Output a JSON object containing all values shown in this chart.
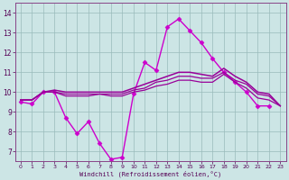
{
  "background_color": "#cce5e5",
  "grid_color": "#99bbbb",
  "line_color": "#990099",
  "line_color2": "#cc44cc",
  "xlim": [
    -0.5,
    23.5
  ],
  "ylim": [
    6.5,
    14.5
  ],
  "xticks": [
    0,
    1,
    2,
    3,
    4,
    5,
    6,
    7,
    8,
    9,
    10,
    11,
    12,
    13,
    14,
    15,
    16,
    17,
    18,
    19,
    20,
    21,
    22,
    23
  ],
  "yticks": [
    7,
    8,
    9,
    10,
    11,
    12,
    13,
    14
  ],
  "xlabel": "Windchill (Refroidissement éolien,°C)",
  "series": [
    {
      "x": [
        0,
        1,
        2,
        3,
        4,
        5,
        6,
        7,
        8,
        9,
        10,
        11,
        12,
        13,
        14,
        15,
        16,
        17,
        18,
        19,
        20,
        21,
        22
      ],
      "y": [
        9.5,
        9.4,
        10.0,
        10.0,
        8.7,
        7.9,
        8.5,
        7.4,
        6.6,
        6.7,
        9.9,
        11.5,
        11.1,
        13.3,
        13.7,
        13.1,
        12.5,
        11.7,
        11.0,
        10.5,
        10.0,
        9.3,
        9.3
      ],
      "marker": "D",
      "markersize": 2.5,
      "linewidth": 1.0,
      "color": "#cc00cc"
    },
    {
      "x": [
        0,
        1,
        2,
        3,
        4,
        5,
        6,
        7,
        8,
        9,
        10,
        11,
        12,
        13,
        14,
        15,
        16,
        17,
        18,
        19,
        20,
        21,
        22,
        23
      ],
      "y": [
        9.6,
        9.6,
        10.0,
        10.0,
        9.8,
        9.8,
        9.8,
        9.9,
        9.8,
        9.8,
        10.0,
        10.1,
        10.3,
        10.4,
        10.6,
        10.6,
        10.5,
        10.5,
        10.9,
        10.5,
        10.2,
        9.7,
        9.6,
        9.3
      ],
      "marker": null,
      "markersize": 0,
      "linewidth": 0.9,
      "color": "#990099"
    },
    {
      "x": [
        0,
        1,
        2,
        3,
        4,
        5,
        6,
        7,
        8,
        9,
        10,
        11,
        12,
        13,
        14,
        15,
        16,
        17,
        18,
        19,
        20,
        21,
        22,
        23
      ],
      "y": [
        9.6,
        9.6,
        10.0,
        10.0,
        9.9,
        9.9,
        9.9,
        9.9,
        9.9,
        9.9,
        10.1,
        10.2,
        10.5,
        10.6,
        10.8,
        10.8,
        10.7,
        10.7,
        11.0,
        10.6,
        10.4,
        9.9,
        9.8,
        9.3
      ],
      "marker": null,
      "markersize": 0,
      "linewidth": 0.9,
      "color": "#990099"
    },
    {
      "x": [
        0,
        1,
        2,
        3,
        4,
        5,
        6,
        7,
        8,
        9,
        10,
        11,
        12,
        13,
        14,
        15,
        16,
        17,
        18,
        19,
        20,
        21,
        22,
        23
      ],
      "y": [
        9.6,
        9.6,
        10.0,
        10.1,
        10.0,
        10.0,
        10.0,
        10.0,
        10.0,
        10.0,
        10.2,
        10.4,
        10.6,
        10.8,
        11.0,
        11.0,
        10.9,
        10.8,
        11.2,
        10.8,
        10.5,
        10.0,
        9.9,
        9.3
      ],
      "marker": null,
      "markersize": 0,
      "linewidth": 1.1,
      "color": "#990099"
    }
  ]
}
